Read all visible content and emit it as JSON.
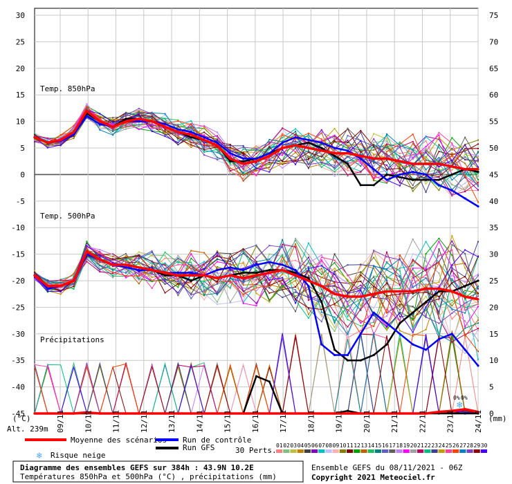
{
  "chart_data": {
    "type": "line",
    "title": "Diagramme des ensembles GEFS sur 384h : 43.9N 10.2E",
    "subtitle": "Températures 850hPa et 500hPa (°C) , précipitations (mm)",
    "run_info": "Ensemble GEFS du 08/11/2021 - 06Z",
    "copyright": "Copyright 2021 Meteociel.fr",
    "altitude": "Alt. 239m",
    "left_unit": "(°C)",
    "right_unit": "(mm)",
    "panel_labels": {
      "t850": "Temp. 850hPa",
      "t500": "Temp. 500hPa",
      "precip": "Précipitations"
    },
    "left_axis": {
      "ticks": [
        "30",
        "25",
        "20",
        "15",
        "10",
        "5",
        "0",
        "-5",
        "-10",
        "-15",
        "-20",
        "-25",
        "-30",
        "-35",
        "-40",
        "-45"
      ],
      "ylim": [
        -45,
        30
      ]
    },
    "right_axis": {
      "ticks": [
        "75",
        "70",
        "65",
        "60",
        "55",
        "50",
        "45",
        "40",
        "35",
        "30",
        "25",
        "20",
        "15",
        "10",
        "5",
        "0"
      ]
    },
    "x_ticks": [
      "09/11",
      "10/11",
      "11/11",
      "12/11",
      "13/11",
      "14/11",
      "15/11",
      "16/11",
      "17/11",
      "18/11",
      "19/11",
      "20/11",
      "21/11",
      "22/11",
      "23/11",
      "24/11"
    ],
    "legend": {
      "mean": "Moyenne des scénarios",
      "control": "Run de contrôle",
      "gfs": "Run GFS",
      "snow": "Risque neige",
      "perts_label": "30 Perts.",
      "perts": [
        "01",
        "02",
        "03",
        "04",
        "05",
        "06",
        "07",
        "08",
        "09",
        "10",
        "11",
        "12",
        "13",
        "14",
        "15",
        "16",
        "17",
        "18",
        "19",
        "20",
        "21",
        "22",
        "23",
        "24",
        "25",
        "26",
        "27",
        "28",
        "29",
        "30"
      ]
    },
    "colors": {
      "mean": "#ff0000",
      "control": "#0000ff",
      "gfs": "#000000",
      "perts": [
        "#ff8080",
        "#80c080",
        "#c0c040",
        "#c08000",
        "#404040",
        "#8000c0",
        "#00c0c0",
        "#c0c0ff",
        "#ffb0b0",
        "#808000",
        "#800000",
        "#00a000",
        "#c06000",
        "#20c060",
        "#008080",
        "#6060c0",
        "#606060",
        "#c080ff",
        "#ff00ff",
        "#a0a0a0",
        "#c00060",
        "#00c080",
        "#404090",
        "#c0a000",
        "#ff40a0",
        "#ff4000",
        "#0080c0",
        "#8040c0",
        "#8b0000",
        "#4000ff"
      ]
    },
    "t850": {
      "mean": [
        7,
        6,
        6.5,
        8,
        12,
        10,
        9,
        10,
        10.5,
        10,
        9,
        8,
        7.5,
        6.5,
        5.5,
        3,
        2,
        2.5,
        3.5,
        5,
        5.5,
        5,
        4.5,
        4,
        4,
        3.5,
        3,
        3,
        2.5,
        2,
        2,
        2,
        1.5,
        1,
        1
      ],
      "control": [
        7,
        6,
        6.3,
        7.5,
        11,
        9.5,
        9,
        10,
        10,
        10,
        9.5,
        8.5,
        8,
        7,
        6,
        4,
        3,
        3,
        4,
        6,
        7,
        6.5,
        6,
        5,
        4.5,
        3,
        1,
        -1,
        0,
        0.5,
        0,
        -2,
        -3,
        -4.5,
        -6
      ],
      "gfs": [
        7,
        6,
        6.5,
        8,
        11.5,
        10,
        9,
        10.5,
        10.5,
        10,
        9,
        8,
        7,
        6.5,
        5.5,
        2.5,
        2.5,
        3,
        4,
        5,
        5.5,
        6,
        5,
        3.5,
        2,
        -2,
        -2,
        0,
        -0.5,
        -1,
        -1,
        -1,
        0,
        1,
        0.5
      ]
    },
    "t500": {
      "mean": [
        -19,
        -21,
        -21,
        -20,
        -14.5,
        -16,
        -17,
        -17,
        -17.5,
        -18,
        -18.5,
        -19,
        -19,
        -19,
        -19.5,
        -19,
        -19.5,
        -19,
        -18.5,
        -18,
        -19,
        -20,
        -21,
        -22.5,
        -23,
        -23,
        -22.5,
        -22,
        -22,
        -22,
        -21.5,
        -21.5,
        -22,
        -23,
        -23.5
      ],
      "control": [
        -19,
        -21.5,
        -21,
        -20,
        -15,
        -16,
        -17,
        -17.5,
        -18,
        -18,
        -18.5,
        -18.5,
        -18.5,
        -19,
        -18,
        -17.5,
        -18,
        -17,
        -16.5,
        -17,
        -18,
        -21,
        -32,
        -34,
        -34,
        -30,
        -26,
        -28,
        -30,
        -32,
        -33,
        -31,
        -30,
        -33,
        -36
      ],
      "gfs": [
        -19,
        -21,
        -21,
        -20,
        -15,
        -16,
        -17,
        -17,
        -17.5,
        -18,
        -19,
        -19,
        -20,
        -19,
        -19.5,
        -19,
        -18.5,
        -18.5,
        -18,
        -18,
        -18.5,
        -19.5,
        -24,
        -33,
        -35,
        -35,
        -34,
        -32,
        -28,
        -26,
        -24,
        -22,
        -22,
        -21,
        -20
      ]
    },
    "precip": {
      "mean": [
        0,
        0,
        0,
        0,
        0.2,
        0,
        0,
        0,
        0,
        0,
        0,
        0,
        0,
        0,
        0,
        0,
        0,
        0,
        0,
        0,
        0,
        0,
        0,
        0,
        0,
        0,
        0,
        0,
        0,
        0,
        0,
        0.3,
        0.5,
        0.8,
        0.3
      ],
      "gfs": [
        0,
        0,
        0,
        0,
        0,
        0,
        0,
        0,
        0,
        0,
        0,
        0,
        0,
        0,
        0,
        0,
        0,
        7,
        6,
        0,
        0,
        0,
        0,
        0,
        0.5,
        0,
        0,
        0,
        0,
        0,
        0,
        0,
        0,
        0,
        0
      ]
    },
    "grid": true
  }
}
